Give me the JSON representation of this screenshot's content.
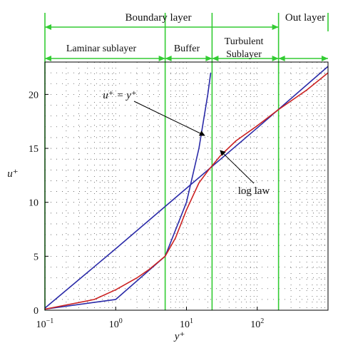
{
  "chart_data": {
    "type": "line",
    "xscale": "log",
    "xlim": [
      0.1,
      1000
    ],
    "ylim": [
      0,
      23
    ],
    "xlabel": "y⁺",
    "ylabel": "u⁺",
    "x_ticks": [
      {
        "value": 0.1,
        "base": "10",
        "exp": "−1"
      },
      {
        "value": 1,
        "base": "10",
        "exp": "0"
      },
      {
        "value": 10,
        "base": "10",
        "exp": "1"
      },
      {
        "value": 100,
        "base": "10",
        "exp": "2"
      }
    ],
    "y_ticks": [
      0,
      5,
      10,
      15,
      20
    ],
    "grid": "dotted",
    "zones": {
      "top_label": "Boundary layer",
      "outer_label": "Out layer",
      "sublayers": [
        "Laminar sublayer",
        "Buffer",
        "Turbulent",
        "Sublayer"
      ],
      "boundaries": [
        5,
        23,
        200
      ],
      "boundary_color": "#33cc33"
    },
    "series": [
      {
        "color": "#2a2aa8",
        "x": [
          0.1,
          1,
          5,
          10,
          15,
          20,
          22
        ],
        "y": [
          0.1,
          1,
          5,
          10,
          15,
          20,
          22
        ]
      },
      {
        "color": "#2a2aa8",
        "x": [
          0.1,
          1,
          10,
          100,
          1000
        ],
        "y": [
          0.2,
          5.7,
          11.3,
          16.9,
          22.6
        ]
      },
      {
        "color": "#cc2222",
        "x": [
          0.1,
          0.5,
          1,
          2,
          3,
          5,
          7,
          10,
          15,
          20,
          30,
          50,
          100,
          200,
          500,
          1000
        ],
        "y": [
          0.1,
          1.0,
          1.9,
          3.0,
          3.8,
          5.0,
          6.7,
          9.3,
          11.8,
          12.9,
          14.3,
          15.7,
          17.1,
          18.6,
          20.4,
          22.0
        ]
      }
    ],
    "annotations": [
      {
        "text": "u⁺ = y⁺",
        "target": {
          "x": 18,
          "y": 16.2
        }
      },
      {
        "text": "log law",
        "target": {
          "x": 30,
          "y": 14.8
        }
      }
    ]
  }
}
